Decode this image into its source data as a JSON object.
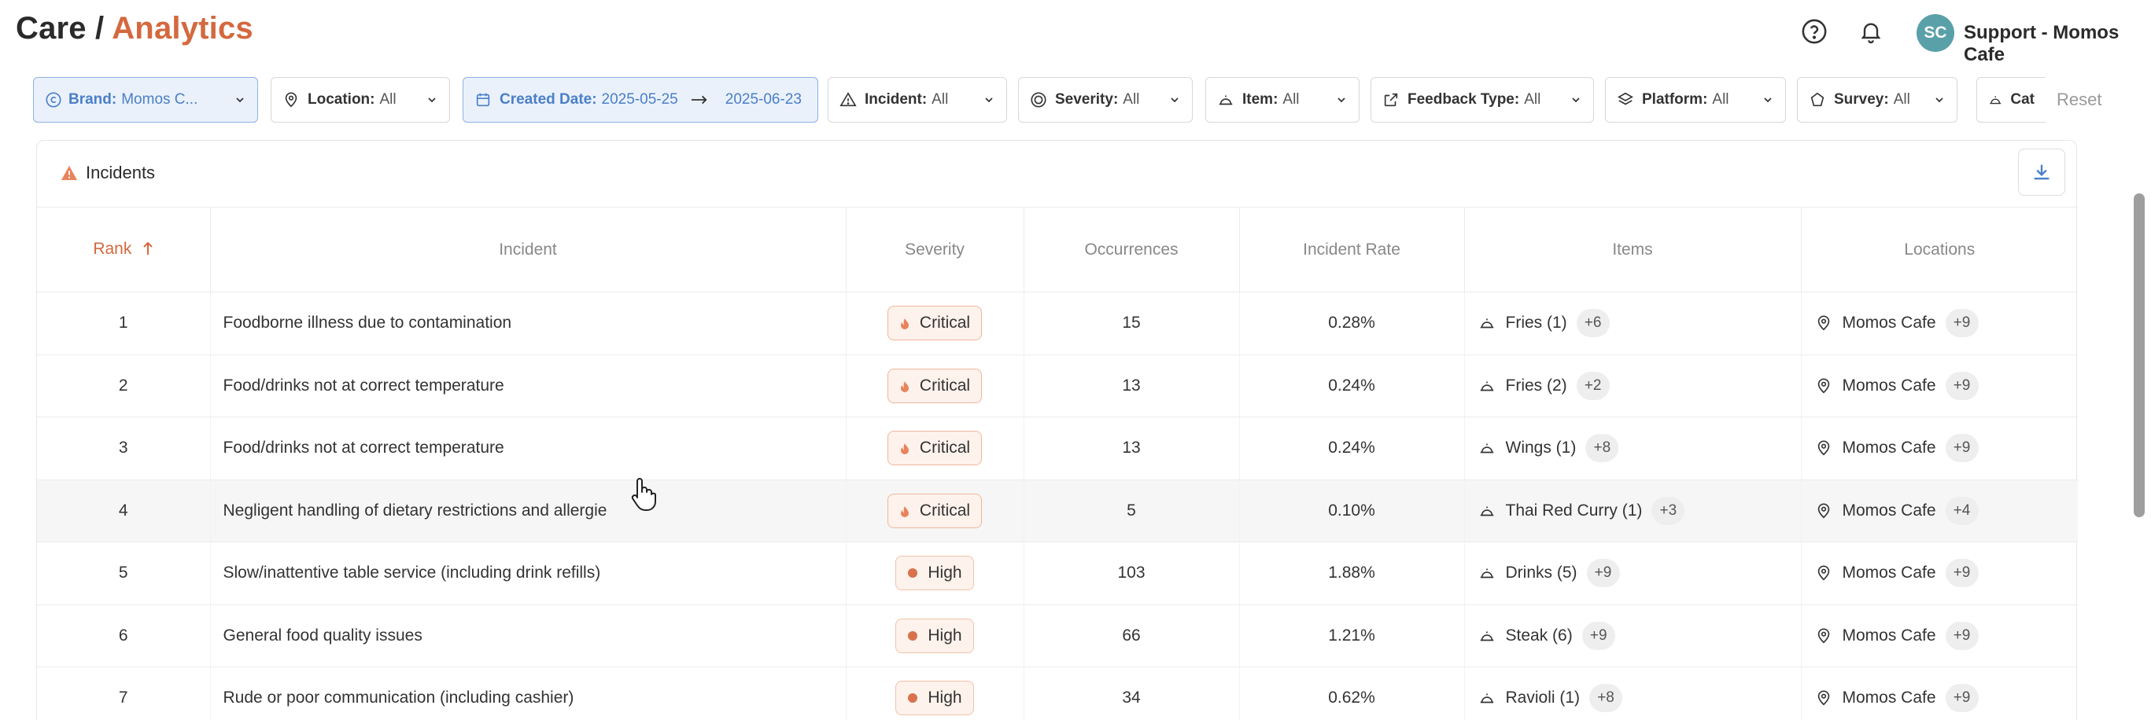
{
  "header": {
    "title_prefix": "Care /",
    "title_accent": "Analytics",
    "help_icon": "help-circle-icon",
    "bell_icon": "bell-icon",
    "avatar_initials": "SC",
    "user_name": "Support - Momos Cafe"
  },
  "filters": [
    {
      "label": "Brand:",
      "value": "Momos C...",
      "active": true,
      "icon": "brand-icon"
    },
    {
      "label": "Location:",
      "value": "All",
      "active": false,
      "icon": "location-pin-icon"
    },
    {
      "label": "Created Date:",
      "value": "2025-05-25",
      "value2": "2025-06-23",
      "active": true,
      "icon": "calendar-icon"
    },
    {
      "label": "Incident:",
      "value": "All",
      "active": false,
      "icon": "warning-triangle-icon"
    },
    {
      "label": "Severity:",
      "value": "All",
      "active": false,
      "icon": "severity-icon"
    },
    {
      "label": "Item:",
      "value": "All",
      "active": false,
      "icon": "cloche-icon"
    },
    {
      "label": "Feedback Type:",
      "value": "All",
      "active": false,
      "icon": "external-link-icon"
    },
    {
      "label": "Platform:",
      "value": "All",
      "active": false,
      "icon": "layers-icon"
    },
    {
      "label": "Survey:",
      "value": "All",
      "active": false,
      "icon": "survey-icon"
    },
    {
      "label": "Cat",
      "value": "",
      "active": false,
      "icon": "cloche-icon"
    }
  ],
  "reset_label": "Reset",
  "card": {
    "title": "Incidents",
    "columns": [
      "Rank",
      "Incident",
      "Severity",
      "Occurrences",
      "Incident Rate",
      "Items",
      "Locations"
    ],
    "rows": [
      {
        "rank": "1",
        "incident": "Foodborne illness due to contamination",
        "severity": "Critical",
        "occurrences": "15",
        "rate": "0.28%",
        "item": "Fries (1)",
        "item_more": "+6",
        "location": "Momos Cafe",
        "loc_more": "+9"
      },
      {
        "rank": "2",
        "incident": "Food/drinks not at correct temperature",
        "severity": "Critical",
        "occurrences": "13",
        "rate": "0.24%",
        "item": "Fries (2)",
        "item_more": "+2",
        "location": "Momos Cafe",
        "loc_more": "+9"
      },
      {
        "rank": "3",
        "incident": "Food/drinks not at correct temperature",
        "severity": "Critical",
        "occurrences": "13",
        "rate": "0.24%",
        "item": "Wings (1)",
        "item_more": "+8",
        "location": "Momos Cafe",
        "loc_more": "+9"
      },
      {
        "rank": "4",
        "incident": "Negligent handling of dietary restrictions and allergie",
        "severity": "Critical",
        "occurrences": "5",
        "rate": "0.10%",
        "item": "Thai Red Curry (1)",
        "item_more": "+3",
        "location": "Momos Cafe",
        "loc_more": "+4"
      },
      {
        "rank": "5",
        "incident": "Slow/inattentive table service (including drink refills)",
        "severity": "High",
        "occurrences": "103",
        "rate": "1.88%",
        "item": "Drinks (5)",
        "item_more": "+9",
        "location": "Momos Cafe",
        "loc_more": "+9"
      },
      {
        "rank": "6",
        "incident": "General food quality issues",
        "severity": "High",
        "occurrences": "66",
        "rate": "1.21%",
        "item": "Steak (6)",
        "item_more": "+9",
        "location": "Momos Cafe",
        "loc_more": "+9"
      },
      {
        "rank": "7",
        "incident": "Rude or poor communication (including cashier)",
        "severity": "High",
        "occurrences": "34",
        "rate": "0.62%",
        "item": "Ravioli (1)",
        "item_more": "+8",
        "location": "Momos Cafe",
        "loc_more": "+9"
      }
    ]
  },
  "colors": {
    "accent": "#d4683e",
    "active_filter": "#4a7fc8",
    "critical_dot": "#e8845c",
    "high_dot": "#d9714a"
  }
}
